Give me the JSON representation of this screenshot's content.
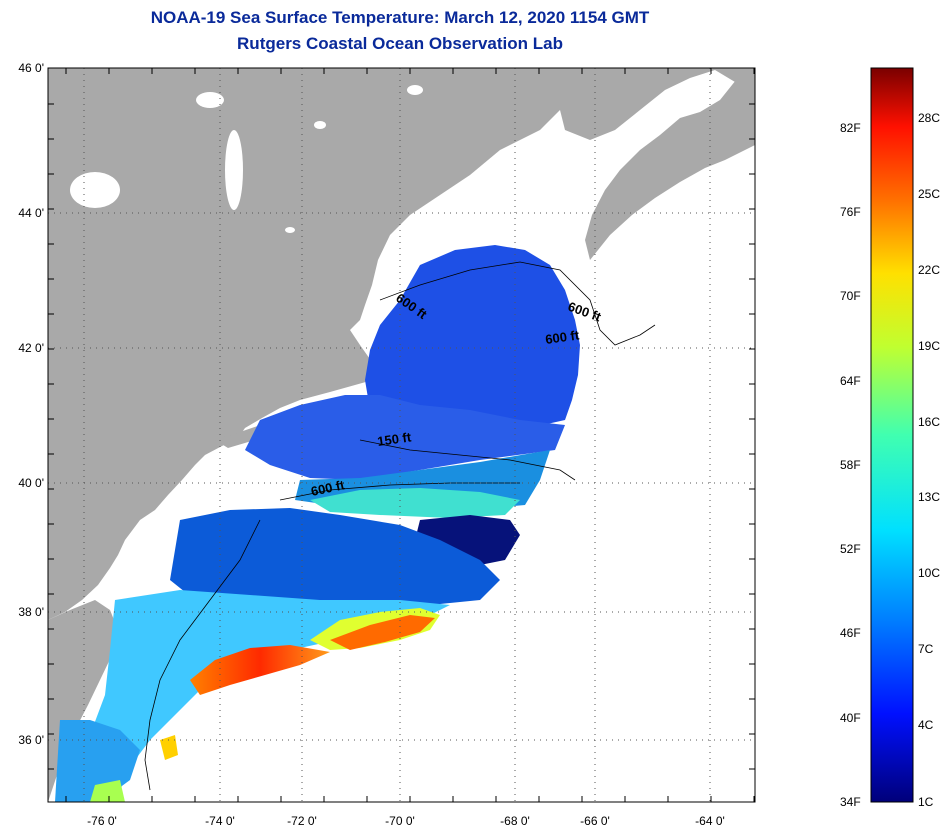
{
  "header": {
    "title": "NOAA-19 Sea Surface Temperature:  March 12, 2020 1154 GMT",
    "subtitle": "Rutgers Coastal Ocean Observation Lab"
  },
  "map": {
    "lon_ticks": [
      "-76 0'",
      "-74 0'",
      "-72 0'",
      "-70 0'",
      "-68 0'",
      "-66 0'",
      "-64 0'"
    ],
    "lat_ticks": [
      "46 0'",
      "44 0'",
      "42 0'",
      "40 0'",
      "38 0'",
      "36 0'"
    ],
    "contour_labels": [
      "600 ft",
      "600 ft",
      "600 ft",
      "150 ft",
      "600 ft"
    ],
    "colors": {
      "land": "#a9a9a9",
      "background": "#ffffff"
    }
  },
  "colorbar": {
    "fahrenheit": [
      "82F",
      "76F",
      "70F",
      "64F",
      "58F",
      "52F",
      "46F",
      "40F",
      "34F"
    ],
    "celsius": [
      "28C",
      "25C",
      "22C",
      "19C",
      "16C",
      "13C",
      "10C",
      "7C",
      "4C",
      "1C"
    ]
  }
}
